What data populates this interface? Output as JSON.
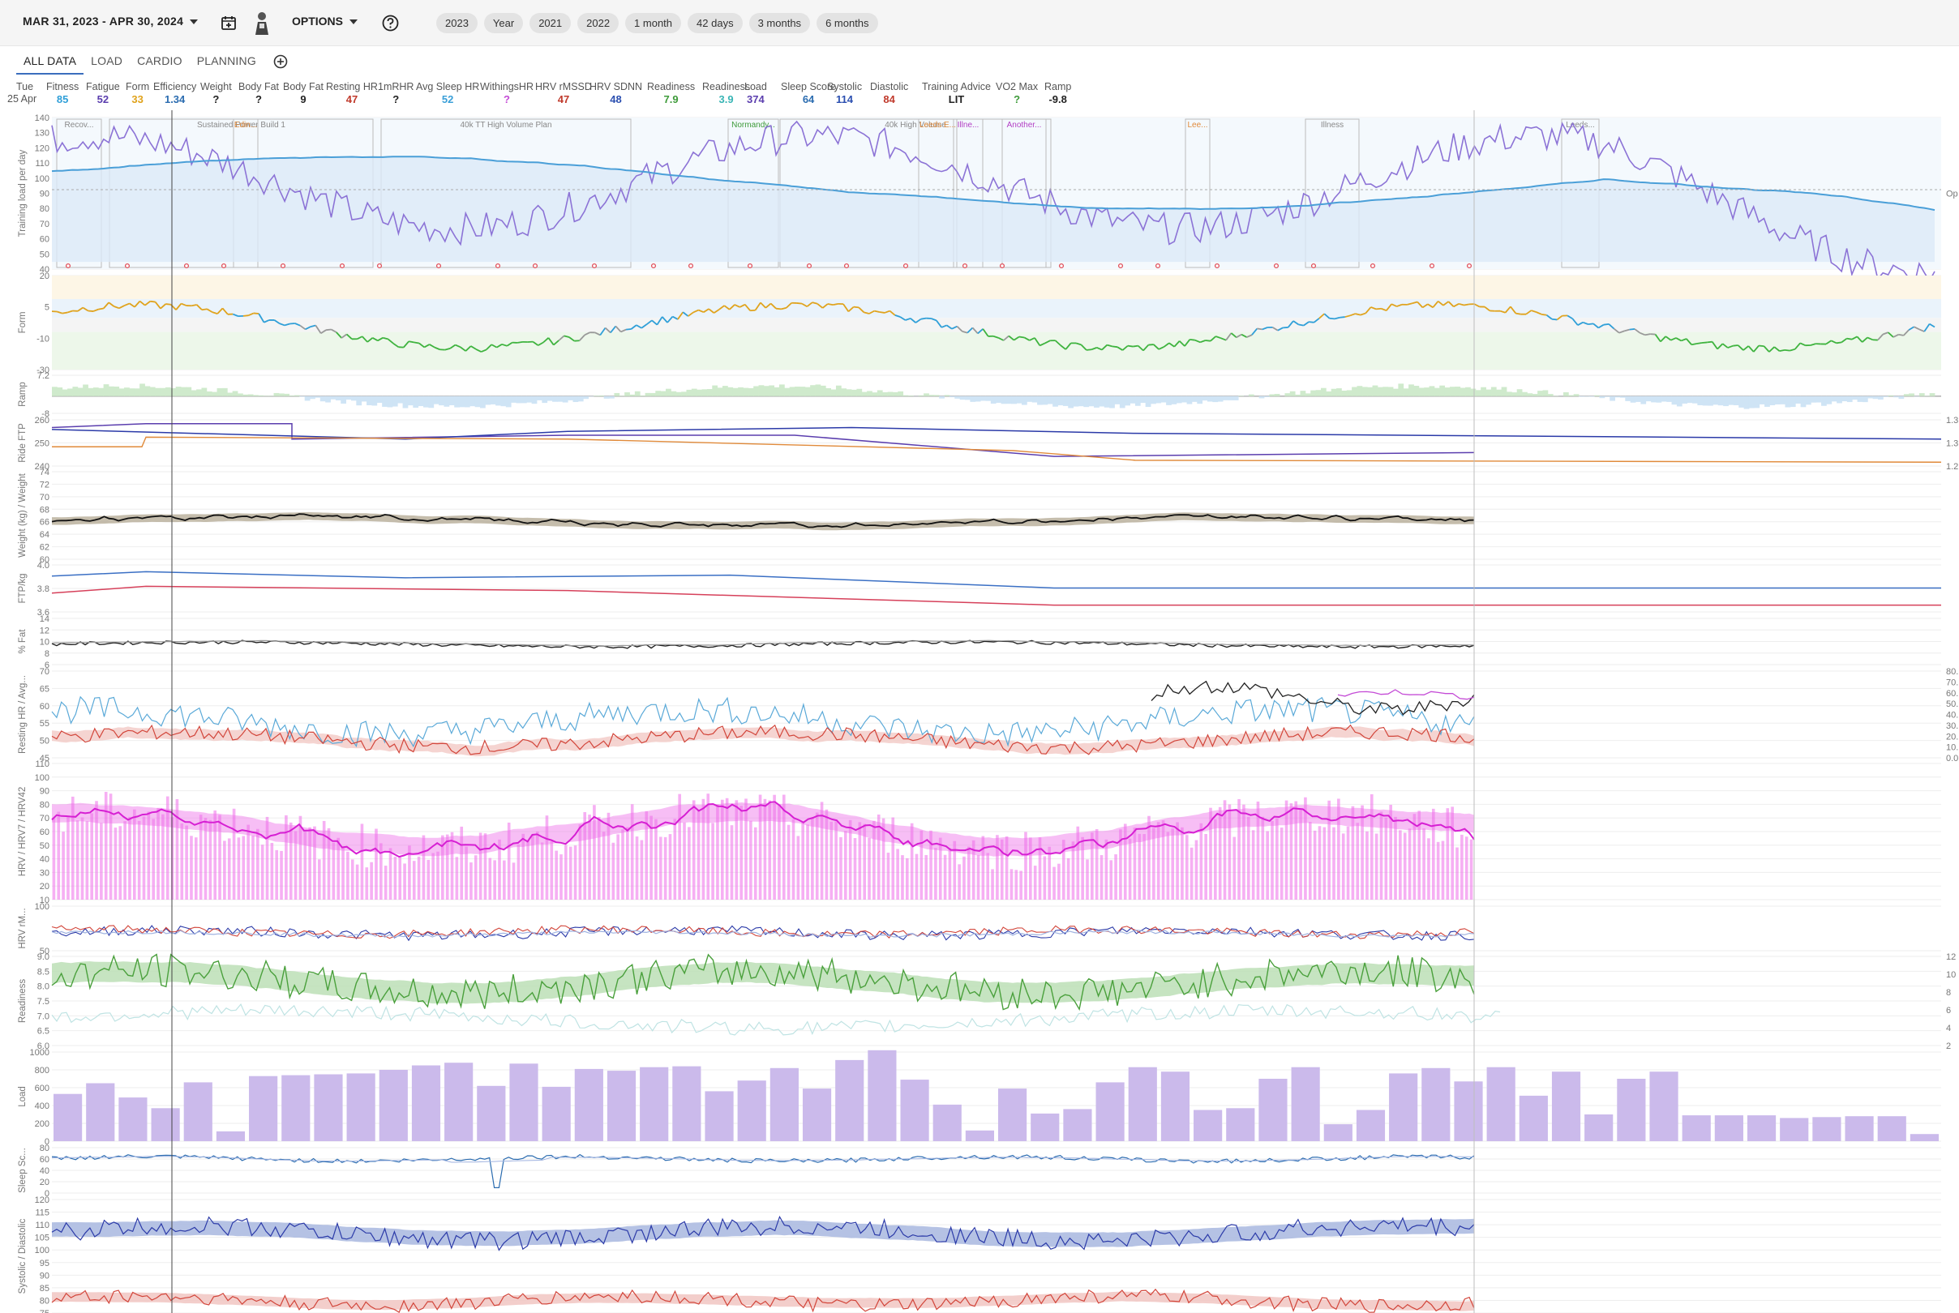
{
  "header": {
    "date_range": "MAR 31, 2023 - APR 30, 2024",
    "options_label": "OPTIONS",
    "chips": [
      "2023",
      "Year",
      "2021",
      "2022",
      "1 month",
      "42 days",
      "3 months",
      "6 months"
    ]
  },
  "tabs": [
    "ALL DATA",
    "LOAD",
    "CARDIO",
    "PLANNING"
  ],
  "day": {
    "weekday": "Tue",
    "date": "25 Apr"
  },
  "metrics": [
    {
      "label": "Fitness",
      "value": "85",
      "color": "#2f9fd8"
    },
    {
      "label": "Fatigue",
      "value": "52",
      "color": "#5b3eae"
    },
    {
      "label": "Form",
      "value": "33",
      "color": "#e0a31d"
    },
    {
      "label": "Efficiency",
      "value": "1.34",
      "color": "#2b6cb0"
    },
    {
      "label": "Weight",
      "value": "?",
      "color": "#222222"
    },
    {
      "label": "Body Fat",
      "value": "?",
      "color": "#222222"
    },
    {
      "label": "Body Fat",
      "value": "9",
      "color": "#222222"
    },
    {
      "label": "Resting HR",
      "value": "47",
      "color": "#c0392b"
    },
    {
      "label": "1mRHR",
      "value": "?",
      "color": "#222222"
    },
    {
      "label": "Avg Sleep HR",
      "value": "52",
      "color": "#3a9fd8"
    },
    {
      "label": "WithingsHR",
      "value": "?",
      "color": "#c44bd6"
    },
    {
      "label": "HRV rMSSD",
      "value": "47",
      "color": "#c0392b"
    },
    {
      "label": "HRV SDNN",
      "value": "48",
      "color": "#2b4fb0"
    },
    {
      "label": "Readiness",
      "value": "7.9",
      "color": "#3e9b3a"
    },
    {
      "label": "Readiness",
      "value": "3.9",
      "color": "#39b5b5"
    },
    {
      "label": "Load",
      "value": "374",
      "color": "#5b3eae"
    },
    {
      "label": "Sleep Score",
      "value": "64",
      "color": "#2b6cb0"
    },
    {
      "label": "Systolic",
      "value": "114",
      "color": "#2b4fb0"
    },
    {
      "label": "Diastolic",
      "value": "84",
      "color": "#c0392b"
    },
    {
      "label": "Training Advice",
      "value": "LIT",
      "color": "#222222"
    },
    {
      "label": "VO2 Max",
      "value": "?",
      "color": "#3e9b3a"
    },
    {
      "label": "Ramp",
      "value": "-9.8",
      "color": "#222222"
    }
  ],
  "panels": [
    {
      "key": "load",
      "label": "Training load per day",
      "ticks": [
        "140",
        "130",
        "120",
        "110",
        "100",
        "90",
        "80",
        "70",
        "60",
        "50",
        "40"
      ],
      "right_ticks": [
        "Op"
      ]
    },
    {
      "key": "form",
      "label": "Form",
      "ticks": [
        "20",
        "5",
        "-10",
        "-30"
      ]
    },
    {
      "key": "ramp",
      "label": "Ramp",
      "ticks": [
        "7.2",
        "-8"
      ]
    },
    {
      "key": "ftp",
      "label": "Ride FTP",
      "ticks": [
        "260",
        "250",
        "240"
      ],
      "right_ticks": [
        "1.3",
        "1.3",
        "1.2"
      ]
    },
    {
      "key": "weight",
      "label": "Weight (kg) / Weight",
      "ticks": [
        "74",
        "72",
        "70",
        "68",
        "66",
        "64",
        "62",
        "60"
      ]
    },
    {
      "key": "ftpkg",
      "label": "FTP/kg",
      "ticks": [
        "4.0",
        "3.8",
        "3.6"
      ]
    },
    {
      "key": "fat",
      "label": "% Fat",
      "ticks": [
        "14",
        "12",
        "10",
        "8",
        "6"
      ]
    },
    {
      "key": "rhr",
      "label": "Resting HR / Avg...",
      "ticks": [
        "70",
        "65",
        "60",
        "55",
        "50",
        "45"
      ],
      "right_ticks": [
        "80.",
        "70.",
        "60.",
        "50.",
        "40.",
        "30.",
        "20.",
        "10.",
        "0.0"
      ]
    },
    {
      "key": "hrv",
      "label": "HRV / HRV7 / HRV42",
      "ticks": [
        "110",
        "100",
        "90",
        "80",
        "70",
        "60",
        "50",
        "40",
        "30",
        "20",
        "10"
      ]
    },
    {
      "key": "hrvm",
      "label": "HRV rM...",
      "ticks": [
        "100",
        "50"
      ]
    },
    {
      "key": "ready",
      "label": "Readiness",
      "ticks": [
        "9.0",
        "8.5",
        "8.0",
        "7.5",
        "7.0",
        "6.5",
        "6.0"
      ],
      "right_ticks": [
        "12",
        "10",
        "8",
        "6",
        "4",
        "2"
      ]
    },
    {
      "key": "loadbars",
      "label": "Load",
      "ticks": [
        "1000",
        "800",
        "600",
        "400",
        "200",
        "0"
      ]
    },
    {
      "key": "sleep",
      "label": "Sleep Sc...",
      "ticks": [
        "80",
        "60",
        "40",
        "20",
        "0"
      ]
    },
    {
      "key": "bp",
      "label": "Systolic / Diastolic",
      "ticks": [
        "120",
        "115",
        "110",
        "105",
        "100",
        "95",
        "90",
        "85",
        "80",
        "75"
      ]
    }
  ],
  "plan_labels": [
    "Recov...",
    "Sustained Power Build 1",
    "Edin...",
    "40k TT High Volume Plan",
    "Normandy...",
    "40k High Volume",
    "Leeds E...",
    "Illne...",
    "Another...",
    "Lee...",
    "Illness",
    "Leeds..."
  ],
  "load_bars": [
    530,
    650,
    490,
    370,
    660,
    110,
    730,
    740,
    750,
    760,
    800,
    850,
    880,
    620,
    870,
    610,
    810,
    790,
    830,
    840,
    560,
    680,
    820,
    590,
    910,
    1020,
    690,
    410,
    120,
    590,
    310,
    360,
    660,
    830,
    780,
    350,
    370,
    700,
    830,
    190,
    350,
    760,
    820,
    670,
    830,
    510,
    780,
    300,
    700,
    780,
    290,
    290,
    290,
    260,
    270,
    280,
    280,
    80
  ],
  "colors": {
    "fitness": "#4a9fd8",
    "fatigue": "#8c73d6",
    "form_pos": "#e0a31d",
    "form_neg": "#3eb33e",
    "hrv": "#ee6ee9",
    "load_bar": "#cbbaeb"
  }
}
